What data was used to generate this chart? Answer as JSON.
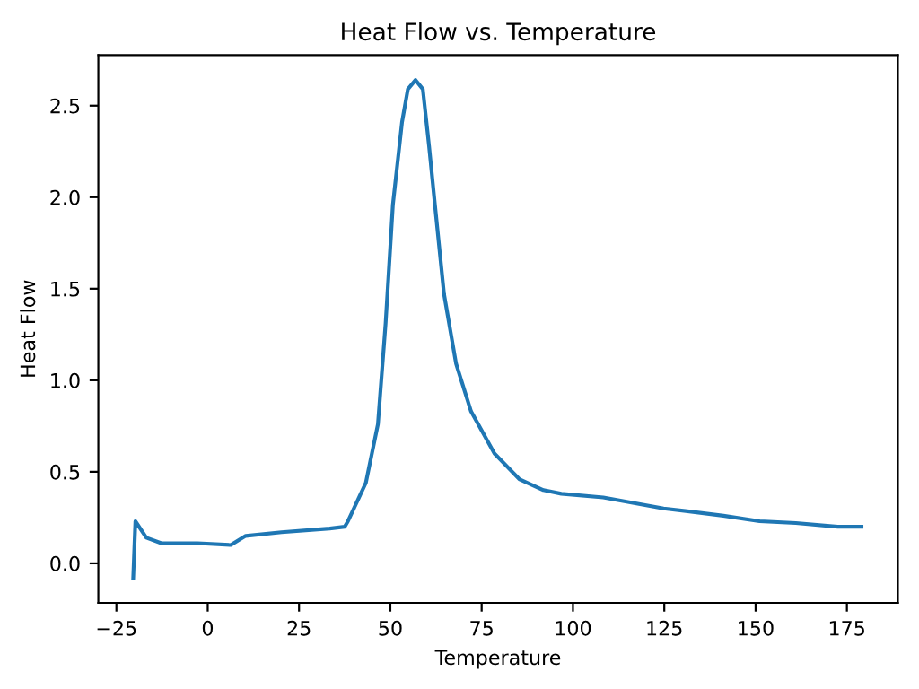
{
  "chart_data": {
    "type": "line",
    "title": "Heat Flow vs. Temperature",
    "xlabel": "Temperature",
    "ylabel": "Heat Flow",
    "xlim": [
      -29.95,
      188.95
    ],
    "ylim": [
      -0.216,
      2.776
    ],
    "xticks": [
      {
        "value": -25,
        "label": "−25"
      },
      0,
      25,
      50,
      75,
      100,
      125,
      150,
      175
    ],
    "yticks": [
      {
        "value": 0,
        "label": "0.0"
      },
      0.5,
      {
        "value": 1,
        "label": "1.0"
      },
      1.5,
      {
        "value": 2,
        "label": "2.0"
      },
      2.5
    ],
    "grid": false,
    "legend": false,
    "series": [
      {
        "color": "#1f77b4",
        "x": [
          -20.4,
          -19.8,
          -16.8,
          -12.7,
          -2.8,
          6.3,
          10.4,
          20.2,
          33.4,
          37.5,
          38.4,
          43.3,
          46.6,
          48.7,
          50.7,
          53.2,
          54.8,
          56.9,
          58.9,
          60.6,
          62.2,
          64.7,
          68.0,
          72.1,
          78.5,
          85.3,
          91.9,
          96.8,
          108.3,
          124.8,
          141.2,
          151.1,
          161.0,
          172.5,
          179.0
        ],
        "values": [
          -0.08,
          0.23,
          0.14,
          0.11,
          0.11,
          0.1,
          0.15,
          0.17,
          0.19,
          0.2,
          0.23,
          0.44,
          0.76,
          1.31,
          1.96,
          2.41,
          2.59,
          2.64,
          2.59,
          2.28,
          1.96,
          1.47,
          1.09,
          0.83,
          0.6,
          0.46,
          0.4,
          0.38,
          0.36,
          0.3,
          0.26,
          0.23,
          0.22,
          0.2,
          0.2
        ]
      }
    ]
  }
}
